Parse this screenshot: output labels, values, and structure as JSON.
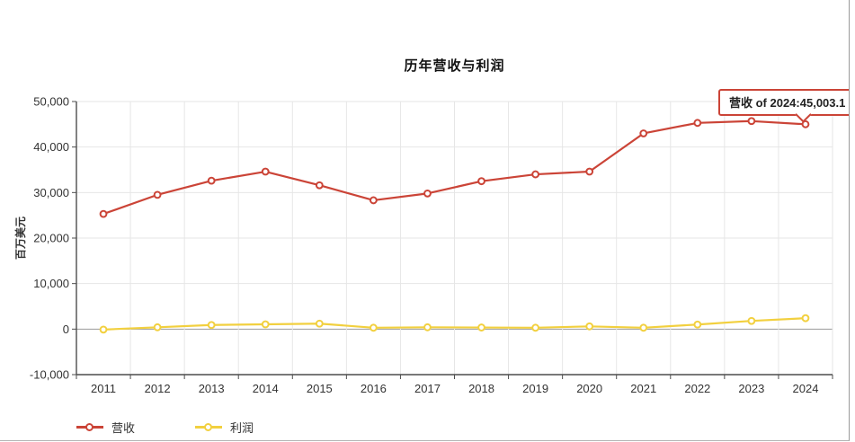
{
  "tooltip": {
    "text": "营收 of 2024:45,003.1",
    "series": "营收",
    "year": "2024",
    "value": "45,003.1",
    "border_color": "#cb4437"
  },
  "chart_data": {
    "type": "line",
    "title": "历年营收与利润",
    "ylabel": "百万美元",
    "xlabel": "",
    "categories": [
      "2011",
      "2012",
      "2013",
      "2014",
      "2015",
      "2016",
      "2017",
      "2018",
      "2019",
      "2020",
      "2021",
      "2022",
      "2023",
      "2024"
    ],
    "series": [
      {
        "name": "营收",
        "color": "#cb4437",
        "values": [
          25300,
          29500,
          32600,
          34600,
          31600,
          28300,
          29800,
          32500,
          34000,
          34600,
          43000,
          45300,
          45700,
          45003.1
        ]
      },
      {
        "name": "利润",
        "color": "#f2d03f",
        "values": [
          -100,
          400,
          900,
          1050,
          1200,
          300,
          400,
          350,
          300,
          600,
          300,
          1000,
          1800,
          2400
        ]
      }
    ],
    "ylim": [
      -10000,
      50000
    ],
    "ytick_step": 10000,
    "grid": true,
    "zero_line": true,
    "legend_position": "bottom-left",
    "highlighted_point": {
      "series": "营收",
      "category": "2024",
      "value": 45003.1
    }
  }
}
